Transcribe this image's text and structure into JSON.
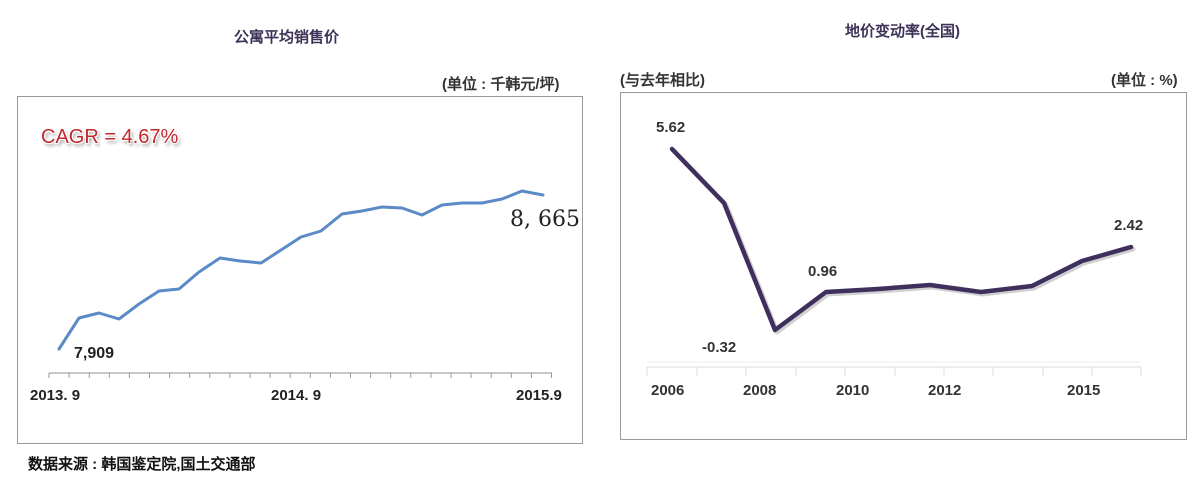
{
  "left_chart": {
    "title": "公寓平均销售价",
    "unit": "(单位 : 千韩元/坪)",
    "annotation": "CAGR = 4.67%",
    "start_label": "7,909",
    "end_label": "8, 665",
    "x_labels": [
      "2013. 9",
      "2014. 9",
      "2015.9"
    ],
    "line_color": "#5b8ac6"
  },
  "right_chart": {
    "title": "地价变动率(全国)",
    "subtitle": "(与去年相比)",
    "unit": "(单位 : %)",
    "x_labels": [
      "2006",
      "2008",
      "2010",
      "2012",
      "2015"
    ],
    "point_labels": [
      "5.62",
      "-0.32",
      "0.96",
      "2.42"
    ],
    "line_color": "#3f2f5c"
  },
  "source": "数据来源 : 韩国鉴定院,国土交通部",
  "chart_data": [
    {
      "type": "line",
      "title": "公寓平均销售价",
      "ylabel": "(单位 : 千韩元/坪)",
      "xlabel": "",
      "x": [
        "2013.9",
        "2013.10",
        "2013.11",
        "2013.12",
        "2014.1",
        "2014.2",
        "2014.3",
        "2014.4",
        "2014.5",
        "2014.6",
        "2014.7",
        "2014.8",
        "2014.9",
        "2014.10",
        "2014.11",
        "2014.12",
        "2015.1",
        "2015.2",
        "2015.3",
        "2015.4",
        "2015.5",
        "2015.6",
        "2015.7",
        "2015.8",
        "2015.9"
      ],
      "series": [
        {
          "name": "公寓平均销售价",
          "values": [
            7909,
            8043,
            8065,
            8039,
            8104,
            8161,
            8170,
            8244,
            8305,
            8292,
            8283,
            8340,
            8397,
            8423,
            8497,
            8510,
            8527,
            8523,
            8492,
            8536,
            8545,
            8545,
            8562,
            8597,
            8665
          ]
        }
      ],
      "annotations": [
        "CAGR = 4.67%",
        "7,909",
        "8, 665"
      ],
      "x_tick_labels": [
        "2013. 9",
        "2014. 9",
        "2015.9"
      ],
      "grid": false
    },
    {
      "type": "line",
      "title": "地价变动率(全国)",
      "subtitle": "(与去年相比)",
      "ylabel": "(单位 : %)",
      "xlabel": "",
      "x": [
        "2006",
        "2007",
        "2008",
        "2009",
        "2010",
        "2011",
        "2012",
        "2013",
        "2014",
        "2015"
      ],
      "series": [
        {
          "name": "地价变动率",
          "values": [
            5.62,
            3.85,
            -0.32,
            0.96,
            1.05,
            1.17,
            0.96,
            1.14,
            1.96,
            2.42
          ]
        }
      ],
      "x_tick_labels": [
        "2006",
        "2008",
        "2010",
        "2012",
        "2015"
      ],
      "data_labels": {
        "2006": "5.62",
        "2008": "-0.32",
        "2009": "0.96",
        "2015": "2.42"
      },
      "grid": false
    }
  ]
}
